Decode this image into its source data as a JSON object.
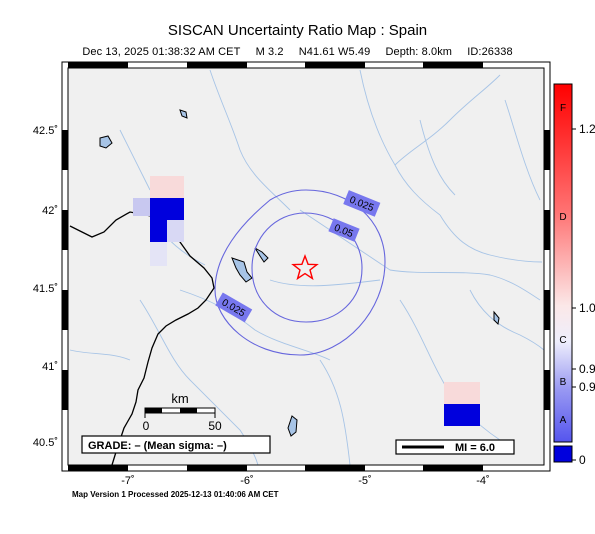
{
  "title": "SISCAN Uncertainty Ratio Map : Spain",
  "subtitle": {
    "date": "Dec 13, 2025 01:38:32 AM CET",
    "magnitude": "M 3.2",
    "location": "N41.61 W5.49",
    "depth": "Depth: 8.0km",
    "id": "ID:26338"
  },
  "axes": {
    "lat_labels": [
      "42.5˚",
      "42˚",
      "41.5˚",
      "41˚",
      "40.5˚"
    ],
    "lon_labels": [
      "-7˚",
      "-6˚",
      "-5˚",
      "-4˚"
    ]
  },
  "contours": [
    "0.025",
    "0.05",
    "0.025"
  ],
  "scale_bar": {
    "unit": "km",
    "start": "0",
    "end": "50"
  },
  "grade_box": "GRADE: – (Mean sigma: –)",
  "mi_legend": "MI = 6.0",
  "colorbar": {
    "letters": [
      "F",
      "D",
      "C",
      "B",
      "A"
    ],
    "values": [
      "1.2",
      "1.0",
      "0.9",
      "0.9",
      "0"
    ]
  },
  "footer": "Map Version 1 Processed 2025-12-13 01:40:06 AM CET",
  "colors": {
    "land": "#f0f0f0",
    "river": "#a7c4e6",
    "contour": "#6666dd",
    "border": "#000000",
    "epicenter": "#ff0000",
    "low_ratio": "#0000dd",
    "high_ratio": "#ff0000"
  }
}
